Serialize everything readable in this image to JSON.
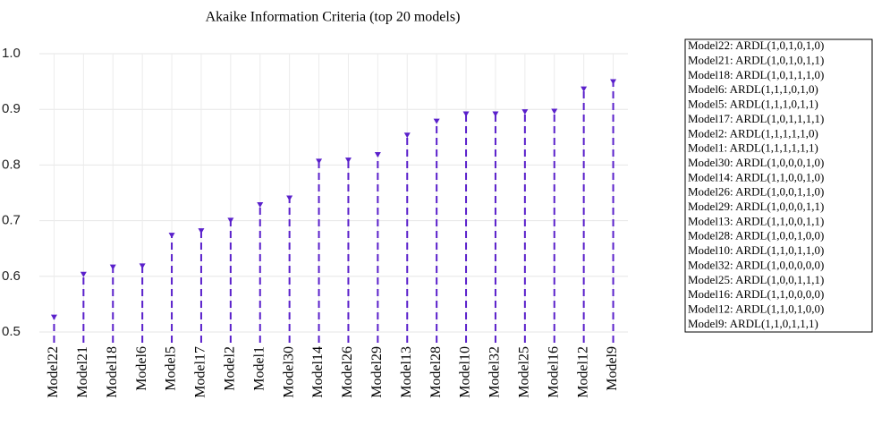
{
  "chart_data": {
    "type": "stem",
    "title": "Akaike Information Criteria (top 20 models)",
    "categories": [
      "Model22",
      "Model21",
      "Model18",
      "Model6",
      "Model5",
      "Model17",
      "Model2",
      "Model1",
      "Model30",
      "Model14",
      "Model26",
      "Model29",
      "Model13",
      "Model28",
      "Model10",
      "Model32",
      "Model25",
      "Model16",
      "Model12",
      "Model9"
    ],
    "values": [
      0.528,
      0.605,
      0.618,
      0.62,
      0.675,
      0.683,
      0.702,
      0.73,
      0.742,
      0.808,
      0.81,
      0.82,
      0.855,
      0.88,
      0.893,
      0.893,
      0.897,
      0.898,
      0.938,
      0.951
    ],
    "color": "#5a20cb",
    "ylim": [
      0.5,
      1.0
    ],
    "yticks": [
      {
        "value": 0.5,
        "label": "0.5"
      },
      {
        "value": 0.6,
        "label": "0.6"
      },
      {
        "value": 0.7,
        "label": "0.7"
      },
      {
        "value": 0.8,
        "label": "0.8"
      },
      {
        "value": 0.9,
        "label": "0.9"
      },
      {
        "value": 1.0,
        "label": "1.0"
      }
    ],
    "grid": true,
    "legend": [
      "Model22: ARDL(1,0,1,0,1,0)",
      "Model21: ARDL(1,0,1,0,1,1)",
      "Model18: ARDL(1,0,1,1,1,0)",
      "Model6: ARDL(1,1,1,0,1,0)",
      "Model5: ARDL(1,1,1,0,1,1)",
      "Model17: ARDL(1,0,1,1,1,1)",
      "Model2: ARDL(1,1,1,1,1,0)",
      "Model1: ARDL(1,1,1,1,1,1)",
      "Model30: ARDL(1,0,0,0,1,0)",
      "Model14: ARDL(1,1,0,0,1,0)",
      "Model26: ARDL(1,0,0,1,1,0)",
      "Model29: ARDL(1,0,0,0,1,1)",
      "Model13: ARDL(1,1,0,0,1,1)",
      "Model28: ARDL(1,0,0,1,0,0)",
      "Model10: ARDL(1,1,0,1,1,0)",
      "Model32: ARDL(1,0,0,0,0,0)",
      "Model25: ARDL(1,0,0,1,1,1)",
      "Model16: ARDL(1,1,0,0,0,0)",
      "Model12: ARDL(1,1,0,1,0,0)",
      "Model9: ARDL(1,1,0,1,1,1)"
    ]
  }
}
